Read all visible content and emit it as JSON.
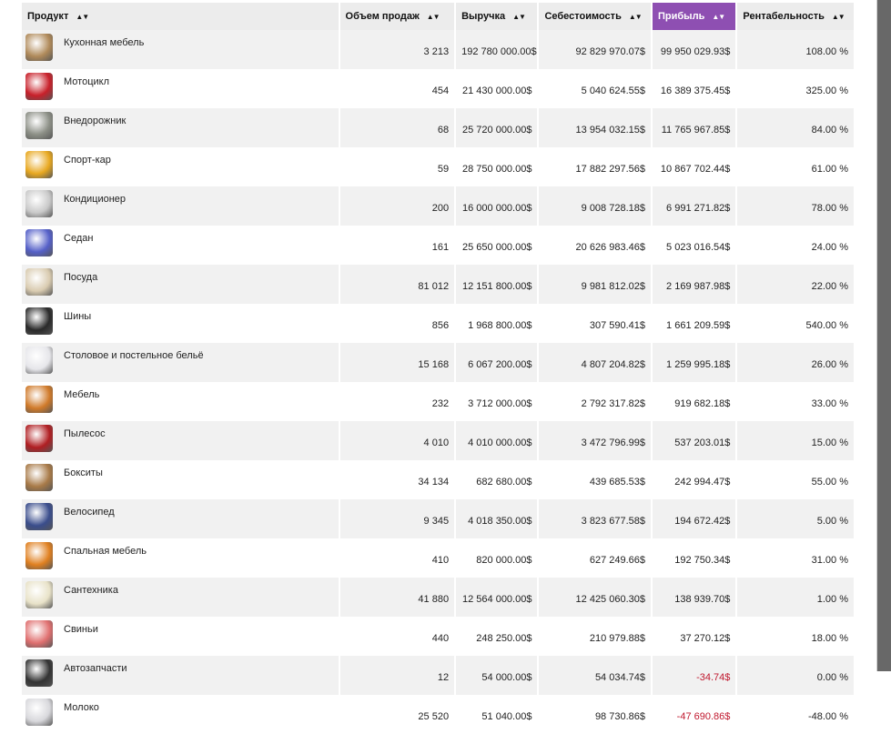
{
  "columns": [
    {
      "label": "Продукт",
      "active": false
    },
    {
      "label": "Объем продаж",
      "active": false
    },
    {
      "label": "Выручка",
      "active": false
    },
    {
      "label": "Себестоимость",
      "active": false
    },
    {
      "label": "Прибыль",
      "active": true
    },
    {
      "label": "Рентабельность",
      "active": false
    }
  ],
  "sort_arrow": "▲▼",
  "colors": {
    "accent": "#8e4fb2",
    "negative": "#c0182e",
    "row_alt": "#f1f1f1"
  },
  "rows": [
    {
      "product": "Кухонная мебель",
      "icon": "sink-icon",
      "color": "#b08a5a",
      "volume": "3 213",
      "revenue": "192 780 000.00$",
      "cost": "92 829 970.07$",
      "profit": "99 950 029.93$",
      "margin": "108.00 %",
      "neg": false
    },
    {
      "product": "Мотоцикл",
      "icon": "motorcycle-icon",
      "color": "#c8202a",
      "volume": "454",
      "revenue": "21 430 000.00$",
      "cost": "5 040 624.55$",
      "profit": "16 389 375.45$",
      "margin": "325.00 %",
      "neg": false
    },
    {
      "product": "Внедорожник",
      "icon": "suv-icon",
      "color": "#8c8f86",
      "volume": "68",
      "revenue": "25 720 000.00$",
      "cost": "13 954 032.15$",
      "profit": "11 765 967.85$",
      "margin": "84.00 %",
      "neg": false
    },
    {
      "product": "Спорт-кар",
      "icon": "sports-car-icon",
      "color": "#e8a820",
      "volume": "59",
      "revenue": "28 750 000.00$",
      "cost": "17 882 297.56$",
      "profit": "10 867 702.44$",
      "margin": "61.00 %",
      "neg": false
    },
    {
      "product": "Кондиционер",
      "icon": "air-conditioner-icon",
      "color": "#c9c9c9",
      "volume": "200",
      "revenue": "16 000 000.00$",
      "cost": "9 008 728.18$",
      "profit": "6 991 271.82$",
      "margin": "78.00 %",
      "neg": false
    },
    {
      "product": "Седан",
      "icon": "sedan-icon",
      "color": "#5560c8",
      "volume": "161",
      "revenue": "25 650 000.00$",
      "cost": "20 626 983.46$",
      "profit": "5 023 016.54$",
      "margin": "24.00 %",
      "neg": false
    },
    {
      "product": "Посуда",
      "icon": "dishes-icon",
      "color": "#d9cbb0",
      "volume": "81 012",
      "revenue": "12 151 800.00$",
      "cost": "9 981 812.02$",
      "profit": "2 169 987.98$",
      "margin": "22.00 %",
      "neg": false
    },
    {
      "product": "Шины",
      "icon": "tire-icon",
      "color": "#2a2a2a",
      "volume": "856",
      "revenue": "1 968 800.00$",
      "cost": "307 590.41$",
      "profit": "1 661 209.59$",
      "margin": "540.00 %",
      "neg": false
    },
    {
      "product": "Столовое и постельное бельё",
      "icon": "linen-icon",
      "color": "#e6e6ea",
      "volume": "15 168",
      "revenue": "6 067 200.00$",
      "cost": "4 807 204.82$",
      "profit": "1 259 995.18$",
      "margin": "26.00 %",
      "neg": false
    },
    {
      "product": "Мебель",
      "icon": "wardrobe-icon",
      "color": "#d07a2a",
      "volume": "232",
      "revenue": "3 712 000.00$",
      "cost": "2 792 317.82$",
      "profit": "919 682.18$",
      "margin": "33.00 %",
      "neg": false
    },
    {
      "product": "Пылесос",
      "icon": "vacuum-cleaner-icon",
      "color": "#b01e22",
      "volume": "4 010",
      "revenue": "4 010 000.00$",
      "cost": "3 472 796.99$",
      "profit": "537 203.01$",
      "margin": "15.00 %",
      "neg": false
    },
    {
      "product": "Бокситы",
      "icon": "bauxite-icon",
      "color": "#a87a48",
      "volume": "34 134",
      "revenue": "682 680.00$",
      "cost": "439 685.53$",
      "profit": "242 994.47$",
      "margin": "55.00 %",
      "neg": false
    },
    {
      "product": "Велосипед",
      "icon": "bicycle-icon",
      "color": "#3a4d8c",
      "volume": "9 345",
      "revenue": "4 018 350.00$",
      "cost": "3 823 677.58$",
      "profit": "194 672.42$",
      "margin": "5.00 %",
      "neg": false
    },
    {
      "product": "Спальная мебель",
      "icon": "sofa-icon",
      "color": "#e08020",
      "volume": "410",
      "revenue": "820 000.00$",
      "cost": "627 249.66$",
      "profit": "192 750.34$",
      "margin": "31.00 %",
      "neg": false
    },
    {
      "product": "Сантехника",
      "icon": "toilet-icon",
      "color": "#e8e2c8",
      "volume": "41 880",
      "revenue": "12 564 000.00$",
      "cost": "12 425 060.30$",
      "profit": "138 939.70$",
      "margin": "1.00 %",
      "neg": false
    },
    {
      "product": "Свиньи",
      "icon": "pig-icon",
      "color": "#e07070",
      "volume": "440",
      "revenue": "248 250.00$",
      "cost": "210 979.88$",
      "profit": "37 270.12$",
      "margin": "18.00 %",
      "neg": false
    },
    {
      "product": "Автозапчасти",
      "icon": "car-parts-icon",
      "color": "#333333",
      "volume": "12",
      "revenue": "54 000.00$",
      "cost": "54 034.74$",
      "profit": "-34.74$",
      "margin": "0.00 %",
      "neg": true
    },
    {
      "product": "Молоко",
      "icon": "milk-bottle-icon",
      "color": "#d8d8dc",
      "volume": "25 520",
      "revenue": "51 040.00$",
      "cost": "98 730.86$",
      "profit": "-47 690.86$",
      "margin": "-48.00 %",
      "neg": true
    }
  ]
}
